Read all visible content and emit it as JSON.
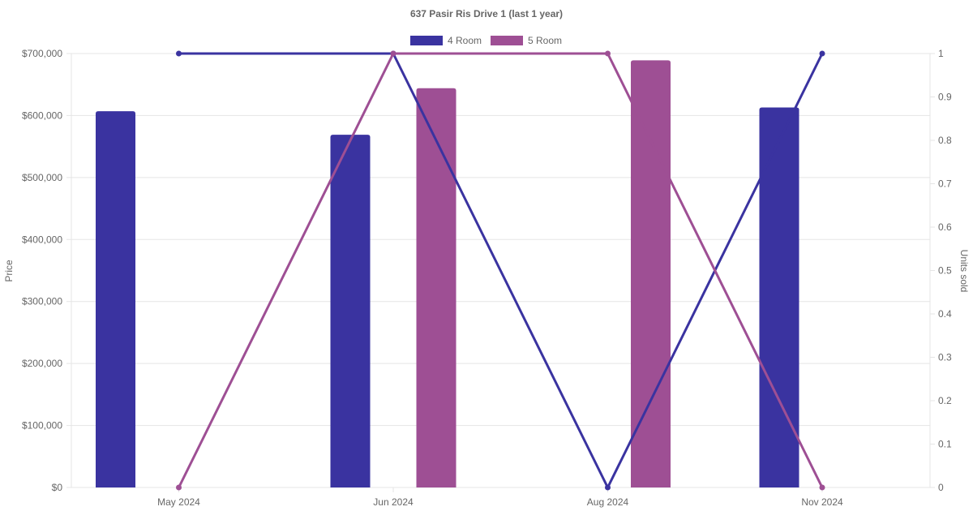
{
  "chart_data": {
    "type": "bar",
    "title": "637 Pasir Ris Drive 1 (last 1 year)",
    "categories": [
      "May 2024",
      "Jun 2024",
      "Aug 2024",
      "Nov 2024"
    ],
    "ylabel": "Price",
    "y2label": "Units sold",
    "ylim": [
      0,
      700000
    ],
    "y2lim": [
      0,
      1
    ],
    "y_ticks": [
      "$0",
      "$100,000",
      "$200,000",
      "$300,000",
      "$400,000",
      "$500,000",
      "$600,000",
      "$700,000"
    ],
    "y2_ticks": [
      "0",
      "0.1",
      "0.2",
      "0.3",
      "0.4",
      "0.5",
      "0.6",
      "0.7",
      "0.8",
      "0.9",
      "1"
    ],
    "grid": true,
    "legend": "top",
    "series": [
      {
        "name": "4 Room",
        "color": "#3a33a0",
        "price": [
          607000,
          569000,
          null,
          613000
        ],
        "units_sold": [
          1,
          1,
          0,
          1
        ]
      },
      {
        "name": "5 Room",
        "color": "#9e4f94",
        "price": [
          null,
          644000,
          689000,
          null
        ],
        "units_sold": [
          0,
          1,
          1,
          0
        ]
      }
    ]
  }
}
